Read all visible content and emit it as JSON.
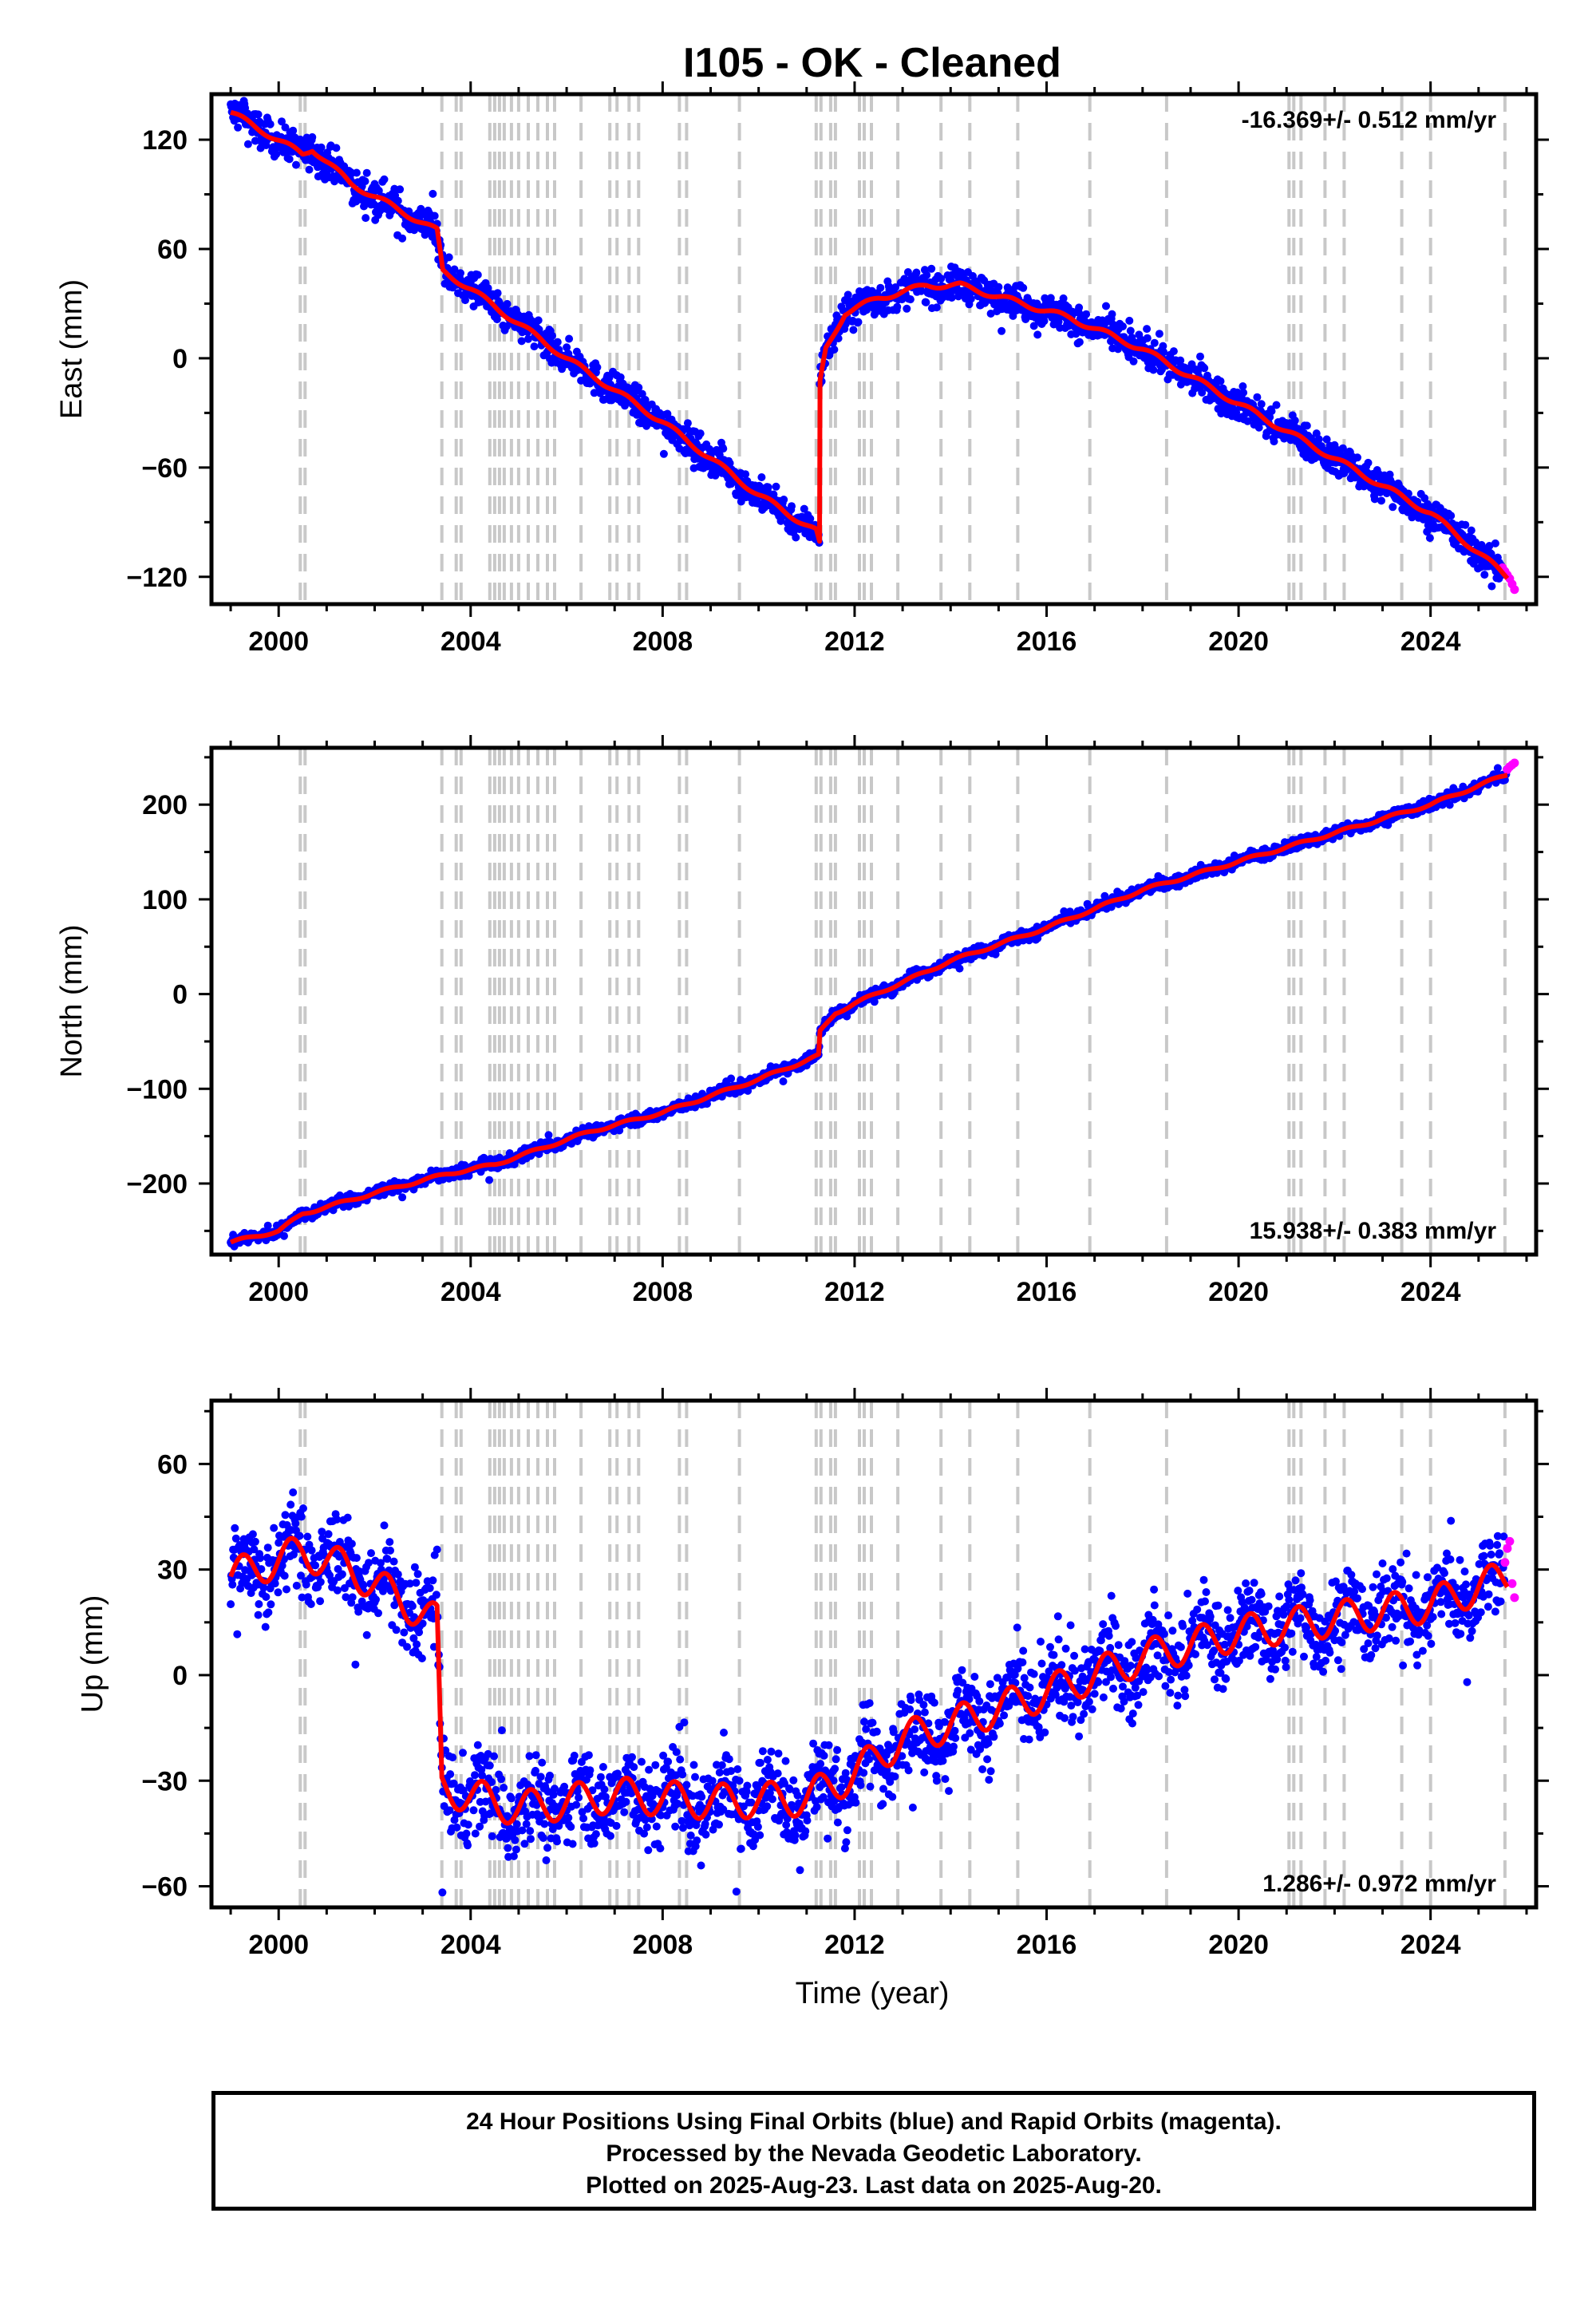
{
  "chart_data": {
    "title": "I105  - OK - Cleaned",
    "xlabel": "Time (year)",
    "xlim": [
      1998.6,
      2026.2
    ],
    "xticks": [
      2000,
      2004,
      2008,
      2012,
      2016,
      2020,
      2024
    ],
    "colors": {
      "final_orbits": "#0000ff",
      "rapid_orbits": "#ff00ff",
      "model": "#ff0000",
      "events": "#c8c8c8"
    },
    "event_lines": [
      2000.45,
      2000.55,
      2003.4,
      2003.7,
      2003.8,
      2004.4,
      2004.5,
      2004.6,
      2004.7,
      2004.85,
      2005.0,
      2005.2,
      2005.4,
      2005.6,
      2005.75,
      2006.3,
      2006.9,
      2007.05,
      2007.3,
      2007.5,
      2008.35,
      2008.5,
      2009.6,
      2011.2,
      2011.3,
      2011.5,
      2011.6,
      2012.1,
      2012.2,
      2012.35,
      2012.9,
      2013.8,
      2014.4,
      2015.4,
      2016.9,
      2018.5,
      2021.05,
      2021.15,
      2021.3,
      2021.8,
      2022.2,
      2023.4,
      2024.0,
      2025.55
    ],
    "panels": [
      {
        "type": "scatter",
        "ylabel": "East (mm)",
        "ylim": [
          -135,
          145
        ],
        "yticks": [
          -120,
          -60,
          0,
          60,
          120
        ],
        "rate_label": "-16.369+/- 0.512 mm/yr",
        "rate_position": "top-right",
        "scatter": 4.5,
        "seasonal": 1.5,
        "series_points": [
          [
            1999.0,
            135
          ],
          [
            2000.5,
            112
          ],
          [
            2000.7,
            115
          ],
          [
            2001.5,
            96
          ],
          [
            2003.3,
            70
          ],
          [
            2003.42,
            48
          ],
          [
            2004.0,
            38
          ],
          [
            2006.0,
            0
          ],
          [
            2008.0,
            -35
          ],
          [
            2010.0,
            -75
          ],
          [
            2011.2,
            -95
          ],
          [
            2011.27,
            -102
          ],
          [
            2011.27,
            -15
          ],
          [
            2011.4,
            5
          ],
          [
            2011.8,
            25
          ],
          [
            2012.5,
            33
          ],
          [
            2013.5,
            40
          ],
          [
            2014.2,
            40
          ],
          [
            2015.5,
            30
          ],
          [
            2016.5,
            22
          ],
          [
            2018.0,
            5
          ],
          [
            2020.0,
            -25
          ],
          [
            2022.0,
            -55
          ],
          [
            2024.0,
            -85
          ],
          [
            2025.6,
            -120
          ]
        ],
        "rapid_points": [
          [
            2025.5,
            -115
          ],
          [
            2025.55,
            -117
          ],
          [
            2025.6,
            -119
          ],
          [
            2025.65,
            -121
          ],
          [
            2025.7,
            -124
          ],
          [
            2025.75,
            -127
          ]
        ]
      },
      {
        "type": "scatter",
        "ylabel": "North (mm)",
        "ylim": [
          -275,
          260
        ],
        "yticks": [
          -200,
          -100,
          0,
          100,
          200
        ],
        "rate_label": "15.938+/- 0.383 mm/yr",
        "rate_position": "bottom-right",
        "scatter": 3,
        "seasonal": 1.5,
        "series_points": [
          [
            1999.0,
            -262
          ],
          [
            2000.0,
            -250
          ],
          [
            2000.5,
            -232
          ],
          [
            2002.0,
            -210
          ],
          [
            2003.5,
            -190
          ],
          [
            2004.5,
            -180
          ],
          [
            2006.5,
            -145
          ],
          [
            2008.0,
            -125
          ],
          [
            2010.0,
            -90
          ],
          [
            2011.25,
            -65
          ],
          [
            2011.28,
            -40
          ],
          [
            2011.6,
            -20
          ],
          [
            2012.0,
            -10
          ],
          [
            2014.0,
            35
          ],
          [
            2016.0,
            70
          ],
          [
            2018.0,
            110
          ],
          [
            2020.0,
            140
          ],
          [
            2022.0,
            170
          ],
          [
            2024.0,
            200
          ],
          [
            2025.6,
            232
          ]
        ],
        "rapid_points": [
          [
            2025.6,
            237
          ],
          [
            2025.65,
            240
          ],
          [
            2025.7,
            242
          ],
          [
            2025.75,
            244
          ]
        ]
      },
      {
        "type": "scatter",
        "ylabel": "Up (mm)",
        "ylim": [
          -66,
          78
        ],
        "yticks": [
          -60,
          -30,
          0,
          30,
          60
        ],
        "rate_label": "1.286+/- 0.972 mm/yr",
        "rate_position": "bottom-right",
        "scatter": 6,
        "seasonal": 5,
        "series_points": [
          [
            1999.0,
            28
          ],
          [
            2000.5,
            35
          ],
          [
            2001.5,
            30
          ],
          [
            2003.3,
            15
          ],
          [
            2003.4,
            -32
          ],
          [
            2005.0,
            -38
          ],
          [
            2007.0,
            -34
          ],
          [
            2009.0,
            -36
          ],
          [
            2011.0,
            -35
          ],
          [
            2012.0,
            -28
          ],
          [
            2013.0,
            -18
          ],
          [
            2014.0,
            -14
          ],
          [
            2016.0,
            -5
          ],
          [
            2018.0,
            5
          ],
          [
            2020.0,
            12
          ],
          [
            2022.0,
            16
          ],
          [
            2024.0,
            20
          ],
          [
            2025.6,
            28
          ]
        ],
        "rapid_points": [
          [
            2025.55,
            32
          ],
          [
            2025.6,
            36
          ],
          [
            2025.65,
            38
          ],
          [
            2025.7,
            26
          ],
          [
            2025.75,
            22
          ]
        ]
      }
    ],
    "footer_lines": [
      "24 Hour Positions Using Final Orbits (blue) and Rapid Orbits (magenta).",
      "Processed by the Nevada Geodetic Laboratory.",
      "Plotted on 2025-Aug-23. Last data on 2025-Aug-20."
    ]
  }
}
